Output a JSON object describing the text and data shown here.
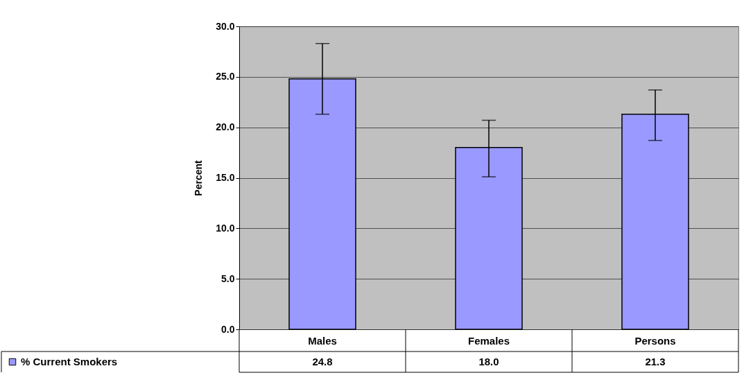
{
  "chart_data": {
    "type": "bar",
    "ylabel": "Percent",
    "categories": [
      "Males",
      "Females",
      "Persons"
    ],
    "series": [
      {
        "name": "% Current Smokers",
        "color": "#9999ff",
        "values": [
          24.8,
          18.0,
          21.3
        ],
        "value_labels": [
          "24.8",
          "18.0",
          "21.3"
        ],
        "errors": [
          [
            21.3,
            28.3
          ],
          [
            15.1,
            20.7
          ],
          [
            18.7,
            23.7
          ]
        ]
      }
    ],
    "ylim": [
      0,
      30
    ],
    "yticks": [
      {
        "value": 0,
        "label": "0.0"
      },
      {
        "value": 5,
        "label": "5.0"
      },
      {
        "value": 10,
        "label": "10.0"
      },
      {
        "value": 15,
        "label": "15.0"
      },
      {
        "value": 20,
        "label": "20.0"
      },
      {
        "value": 25,
        "label": "25.0"
      },
      {
        "value": 30,
        "label": "30.0"
      }
    ],
    "grid": "y",
    "legend": "bottom"
  }
}
